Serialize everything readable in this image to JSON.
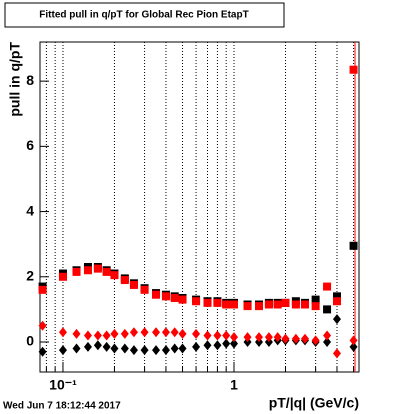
{
  "chart_data": {
    "type": "scatter",
    "title": "Fitted pull in q/pT for Global Rec Pion EtapT",
    "x_label": "pT/|q| (GeV/c)",
    "y_label": "pull in q/pT",
    "timestamp": "Wed Jun  7 18:12:44 2017",
    "log_x": true,
    "grid": true,
    "x": [
      0.076,
      0.1,
      0.12,
      0.14,
      0.16,
      0.18,
      0.2,
      0.23,
      0.26,
      0.3,
      0.35,
      0.4,
      0.45,
      0.5,
      0.6,
      0.7,
      0.8,
      0.9,
      1.0,
      1.2,
      1.4,
      1.6,
      1.8,
      2.0,
      2.3,
      2.6,
      3.0,
      3.5,
      4.0,
      5.0
    ],
    "series": [
      {
        "marker": "square",
        "color": "#000000",
        "values": [
          1.7,
          2.1,
          2.2,
          2.3,
          2.3,
          2.2,
          2.1,
          1.95,
          1.8,
          1.65,
          1.5,
          1.45,
          1.4,
          1.35,
          1.3,
          1.25,
          1.25,
          1.2,
          1.2,
          1.15,
          1.15,
          1.2,
          1.2,
          1.2,
          1.25,
          1.2,
          1.3,
          1.0,
          1.4,
          2.95
        ]
      },
      {
        "marker": "square",
        "color": "#ff0000",
        "values": [
          1.6,
          2.0,
          2.15,
          2.2,
          2.25,
          2.15,
          2.05,
          1.9,
          1.75,
          1.6,
          1.45,
          1.4,
          1.35,
          1.3,
          1.25,
          1.2,
          1.2,
          1.15,
          1.15,
          1.1,
          1.1,
          1.15,
          1.15,
          1.2,
          1.15,
          1.15,
          1.1,
          1.7,
          1.25,
          8.35
        ]
      },
      {
        "marker": "diamond",
        "color": "#000000",
        "values": [
          -0.3,
          -0.25,
          -0.2,
          -0.15,
          -0.1,
          -0.15,
          -0.2,
          -0.2,
          -0.25,
          -0.25,
          -0.25,
          -0.25,
          -0.2,
          -0.2,
          -0.15,
          -0.1,
          -0.1,
          -0.05,
          -0.05,
          0,
          0,
          0,
          0.05,
          0.05,
          0.05,
          0.05,
          0,
          0,
          0.7,
          -0.15
        ]
      },
      {
        "marker": "diamond",
        "color": "#ff0000",
        "values": [
          0.5,
          0.3,
          0.25,
          0.2,
          0.2,
          0.2,
          0.25,
          0.25,
          0.3,
          0.3,
          0.3,
          0.3,
          0.3,
          0.25,
          0.25,
          0.2,
          0.2,
          0.2,
          0.15,
          0.15,
          0.15,
          0.15,
          0.15,
          0.1,
          0.1,
          0.1,
          0.05,
          0.2,
          -0.35,
          0.05
        ]
      }
    ],
    "xlim": [
      0.0734,
      5.38
    ],
    "ylim": [
      -0.92,
      9.2
    ],
    "xticks": [
      {
        "value": 0.1,
        "label": "10⁻¹"
      },
      1
    ],
    "xminorticks": [
      0.08,
      0.09,
      0.2,
      0.3,
      0.4,
      0.5,
      0.6,
      0.7,
      0.8,
      0.9,
      2,
      3,
      4,
      5
    ],
    "yticks": [
      0,
      2,
      4,
      6,
      8
    ]
  }
}
